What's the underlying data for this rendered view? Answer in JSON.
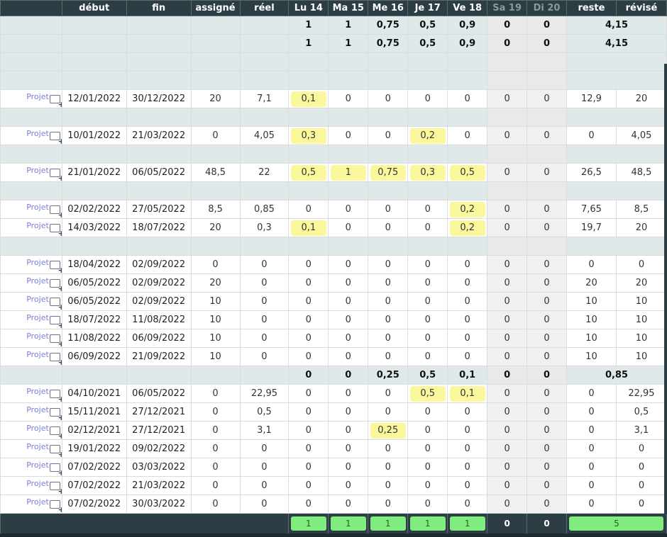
{
  "headers": [
    "",
    "début",
    "fin",
    "assigné",
    "réel",
    "Lu 14",
    "Ma 15",
    "Me 16",
    "Je 17",
    "Ve 18",
    "Sa 19",
    "Di 20",
    "reste",
    "révisé"
  ],
  "project_link_label": "Projet",
  "rows": [
    {
      "type": "group",
      "bold": true,
      "days": [
        "1",
        "1",
        "0,75",
        "0,5",
        "0,9",
        "0",
        "0"
      ],
      "total": "4,15"
    },
    {
      "type": "group",
      "bold": true,
      "days": [
        "1",
        "1",
        "0,75",
        "0,5",
        "0,9",
        "0",
        "0"
      ],
      "total": "4,15"
    },
    {
      "type": "group"
    },
    {
      "type": "group"
    },
    {
      "type": "data",
      "debut": "12/01/2022",
      "fin": "30/12/2022",
      "assigne": "20",
      "reel": "7,1",
      "days": [
        "0,1",
        "0",
        "0",
        "0",
        "0",
        "0",
        "0"
      ],
      "hl": [
        0
      ],
      "reste": "12,9",
      "revise": "20"
    },
    {
      "type": "group"
    },
    {
      "type": "data",
      "debut": "10/01/2022",
      "fin": "21/03/2022",
      "assigne": "0",
      "reel": "4,05",
      "days": [
        "0,3",
        "0",
        "0",
        "0,2",
        "0",
        "0",
        "0"
      ],
      "hl": [
        0,
        3
      ],
      "reste": "0",
      "revise": "4,05"
    },
    {
      "type": "group"
    },
    {
      "type": "data",
      "debut": "21/01/2022",
      "fin": "06/05/2022",
      "assigne": "48,5",
      "reel": "22",
      "days": [
        "0,5",
        "1",
        "0,75",
        "0,3",
        "0,5",
        "0",
        "0"
      ],
      "hl": [
        0,
        1,
        2,
        3,
        4
      ],
      "reste": "26,5",
      "revise": "48,5"
    },
    {
      "type": "group"
    },
    {
      "type": "data",
      "debut": "02/02/2022",
      "fin": "27/05/2022",
      "assigne": "8,5",
      "reel": "0,85",
      "days": [
        "0",
        "0",
        "0",
        "0",
        "0,2",
        "0",
        "0"
      ],
      "hl": [
        4
      ],
      "reste": "7,65",
      "revise": "8,5"
    },
    {
      "type": "data",
      "debut": "14/03/2022",
      "fin": "18/07/2022",
      "assigne": "20",
      "reel": "0,3",
      "days": [
        "0,1",
        "0",
        "0",
        "0",
        "0,2",
        "0",
        "0"
      ],
      "hl": [
        0,
        4
      ],
      "reste": "19,7",
      "revise": "20"
    },
    {
      "type": "group"
    },
    {
      "type": "data",
      "debut": "18/04/2022",
      "fin": "02/09/2022",
      "assigne": "0",
      "reel": "0",
      "days": [
        "0",
        "0",
        "0",
        "0",
        "0",
        "0",
        "0"
      ],
      "hl": [],
      "reste": "0",
      "revise": "0"
    },
    {
      "type": "data",
      "debut": "06/05/2022",
      "fin": "02/09/2022",
      "assigne": "20",
      "reel": "0",
      "days": [
        "0",
        "0",
        "0",
        "0",
        "0",
        "0",
        "0"
      ],
      "hl": [],
      "reste": "20",
      "revise": "20"
    },
    {
      "type": "data",
      "debut": "06/05/2022",
      "fin": "02/09/2022",
      "assigne": "10",
      "reel": "0",
      "days": [
        "0",
        "0",
        "0",
        "0",
        "0",
        "0",
        "0"
      ],
      "hl": [],
      "reste": "10",
      "revise": "10"
    },
    {
      "type": "data",
      "debut": "18/07/2022",
      "fin": "11/08/2022",
      "assigne": "10",
      "reel": "0",
      "days": [
        "0",
        "0",
        "0",
        "0",
        "0",
        "0",
        "0"
      ],
      "hl": [],
      "reste": "10",
      "revise": "10"
    },
    {
      "type": "data",
      "debut": "11/08/2022",
      "fin": "06/09/2022",
      "assigne": "10",
      "reel": "0",
      "days": [
        "0",
        "0",
        "0",
        "0",
        "0",
        "0",
        "0"
      ],
      "hl": [],
      "reste": "10",
      "revise": "10"
    },
    {
      "type": "data",
      "debut": "06/09/2022",
      "fin": "21/09/2022",
      "assigne": "10",
      "reel": "0",
      "days": [
        "0",
        "0",
        "0",
        "0",
        "0",
        "0",
        "0"
      ],
      "hl": [],
      "reste": "10",
      "revise": "10"
    },
    {
      "type": "group",
      "bold": true,
      "days": [
        "0",
        "0",
        "0,25",
        "0,5",
        "0,1",
        "0",
        "0"
      ],
      "total": "0,85"
    },
    {
      "type": "data",
      "debut": "04/10/2021",
      "fin": "06/05/2022",
      "assigne": "0",
      "reel": "22,95",
      "days": [
        "0",
        "0",
        "0",
        "0,5",
        "0,1",
        "0",
        "0"
      ],
      "hl": [
        3,
        4
      ],
      "reste": "0",
      "revise": "22,95"
    },
    {
      "type": "data",
      "debut": "15/11/2021",
      "fin": "27/12/2021",
      "assigne": "0",
      "reel": "0,5",
      "days": [
        "0",
        "0",
        "0",
        "0",
        "0",
        "0",
        "0"
      ],
      "hl": [],
      "reste": "0",
      "revise": "0,5"
    },
    {
      "type": "data",
      "debut": "02/12/2021",
      "fin": "27/12/2021",
      "assigne": "0",
      "reel": "3,1",
      "days": [
        "0",
        "0",
        "0,25",
        "0",
        "0",
        "0",
        "0"
      ],
      "hl": [
        2
      ],
      "reste": "0",
      "revise": "3,1"
    },
    {
      "type": "data",
      "debut": "19/01/2022",
      "fin": "09/02/2022",
      "assigne": "0",
      "reel": "0",
      "days": [
        "0",
        "0",
        "0",
        "0",
        "0",
        "0",
        "0"
      ],
      "hl": [],
      "reste": "0",
      "revise": "0"
    },
    {
      "type": "data",
      "debut": "07/02/2022",
      "fin": "03/03/2022",
      "assigne": "0",
      "reel": "0",
      "days": [
        "0",
        "0",
        "0",
        "0",
        "0",
        "0",
        "0"
      ],
      "hl": [],
      "reste": "0",
      "revise": "0"
    },
    {
      "type": "data",
      "debut": "07/02/2022",
      "fin": "21/03/2022",
      "assigne": "0",
      "reel": "0",
      "days": [
        "0",
        "0",
        "0",
        "0",
        "0",
        "0",
        "0"
      ],
      "hl": [],
      "reste": "0",
      "revise": "0"
    },
    {
      "type": "data",
      "debut": "07/02/2022",
      "fin": "30/03/2022",
      "assigne": "0",
      "reel": "0",
      "days": [
        "0",
        "0",
        "0",
        "0",
        "0",
        "0",
        "0"
      ],
      "hl": [],
      "reste": "0",
      "revise": "0"
    }
  ],
  "footer": {
    "days": [
      "1",
      "1",
      "1",
      "1",
      "1",
      "0",
      "0"
    ],
    "total": "5"
  },
  "colors": {
    "header_bg": "#2c3e43",
    "group_bg": "#dfe9ea",
    "weekend_bg": "#f0f0f0",
    "highlight": "#fbf79c",
    "capacity_green": "#7eed7e",
    "link": "#7b7fd6"
  }
}
